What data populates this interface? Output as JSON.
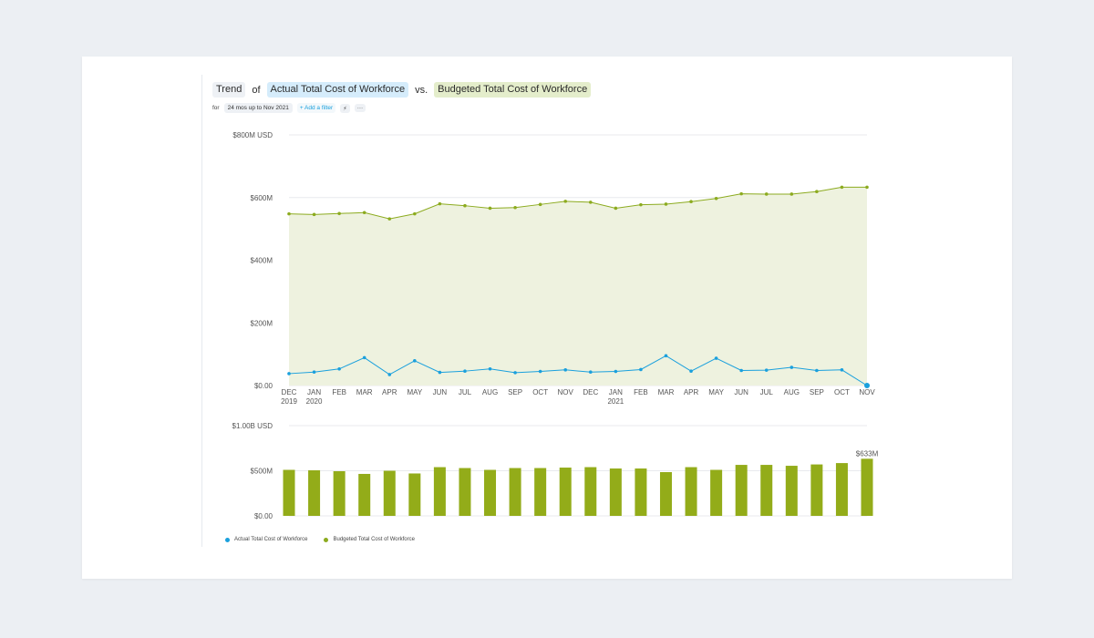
{
  "header": {
    "trend": "Trend",
    "of": "of",
    "actual_metric": "Actual Total Cost of Workforce",
    "vs": "vs.",
    "budget_metric": "Budgeted Total Cost of Workforce"
  },
  "filters": {
    "for_label": "for",
    "range": "24 mos up to Nov 2021",
    "add_filter": "+ Add a filter",
    "bolt_icon": "⚡",
    "more_icon": "···"
  },
  "legend": {
    "actual": "Actual Total Cost of Workforce",
    "budget": "Budgeted Total Cost of Workforce"
  },
  "colors": {
    "actual": "#1aa0dd",
    "budget": "#8cab1f",
    "budget_area": "#eef2df",
    "bar": "#93ac19",
    "grid": "#e8eaed"
  },
  "chart_data": [
    {
      "type": "area",
      "title": "Trend of Actual Total Cost of Workforce vs. Budgeted Total Cost of Workforce",
      "ylabel": "USD",
      "ylim": [
        0,
        800
      ],
      "yticks": [
        "$0.00",
        "$200M",
        "$400M",
        "$600M",
        "$800M USD"
      ],
      "categories": [
        "DEC",
        "JAN",
        "FEB",
        "MAR",
        "APR",
        "MAY",
        "JUN",
        "JUL",
        "AUG",
        "SEP",
        "OCT",
        "NOV",
        "DEC",
        "JAN",
        "FEB",
        "MAR",
        "APR",
        "MAY",
        "JUN",
        "JUL",
        "AUG",
        "SEP",
        "OCT",
        "NOV"
      ],
      "years": [
        "2019",
        "2020",
        "",
        "",
        "",
        "",
        "",
        "",
        "",
        "",
        "",
        "",
        "",
        "2021",
        "",
        "",
        "",
        "",
        "",
        "",
        "",
        "",
        "",
        ""
      ],
      "series": [
        {
          "name": "Budgeted Total Cost of Workforce",
          "values": [
            548,
            546,
            549,
            552,
            532,
            548,
            580,
            574,
            566,
            568,
            578,
            588,
            585,
            566,
            577,
            579,
            587,
            597,
            612,
            611,
            611,
            619,
            633,
            633
          ]
        },
        {
          "name": "Actual Total Cost of Workforce",
          "values": [
            38,
            43,
            53,
            89,
            35,
            79,
            42,
            46,
            53,
            41,
            45,
            50,
            43,
            45,
            51,
            95,
            46,
            87,
            48,
            49,
            58,
            48,
            50,
            0
          ]
        }
      ]
    },
    {
      "type": "bar",
      "ylabel": "USD",
      "ylim": [
        0,
        1000
      ],
      "yticks": [
        "$0.00",
        "$500M",
        "$1.00B USD"
      ],
      "categories": [
        "DEC",
        "JAN",
        "FEB",
        "MAR",
        "APR",
        "MAY",
        "JUN",
        "JUL",
        "AUG",
        "SEP",
        "OCT",
        "NOV",
        "DEC",
        "JAN",
        "FEB",
        "MAR",
        "APR",
        "MAY",
        "JUN",
        "JUL",
        "AUG",
        "SEP",
        "OCT",
        "NOV"
      ],
      "values": [
        510,
        505,
        495,
        465,
        500,
        470,
        540,
        530,
        510,
        530,
        530,
        535,
        540,
        525,
        525,
        485,
        540,
        510,
        565,
        565,
        555,
        570,
        585,
        633
      ],
      "last_label": "$633M"
    }
  ]
}
